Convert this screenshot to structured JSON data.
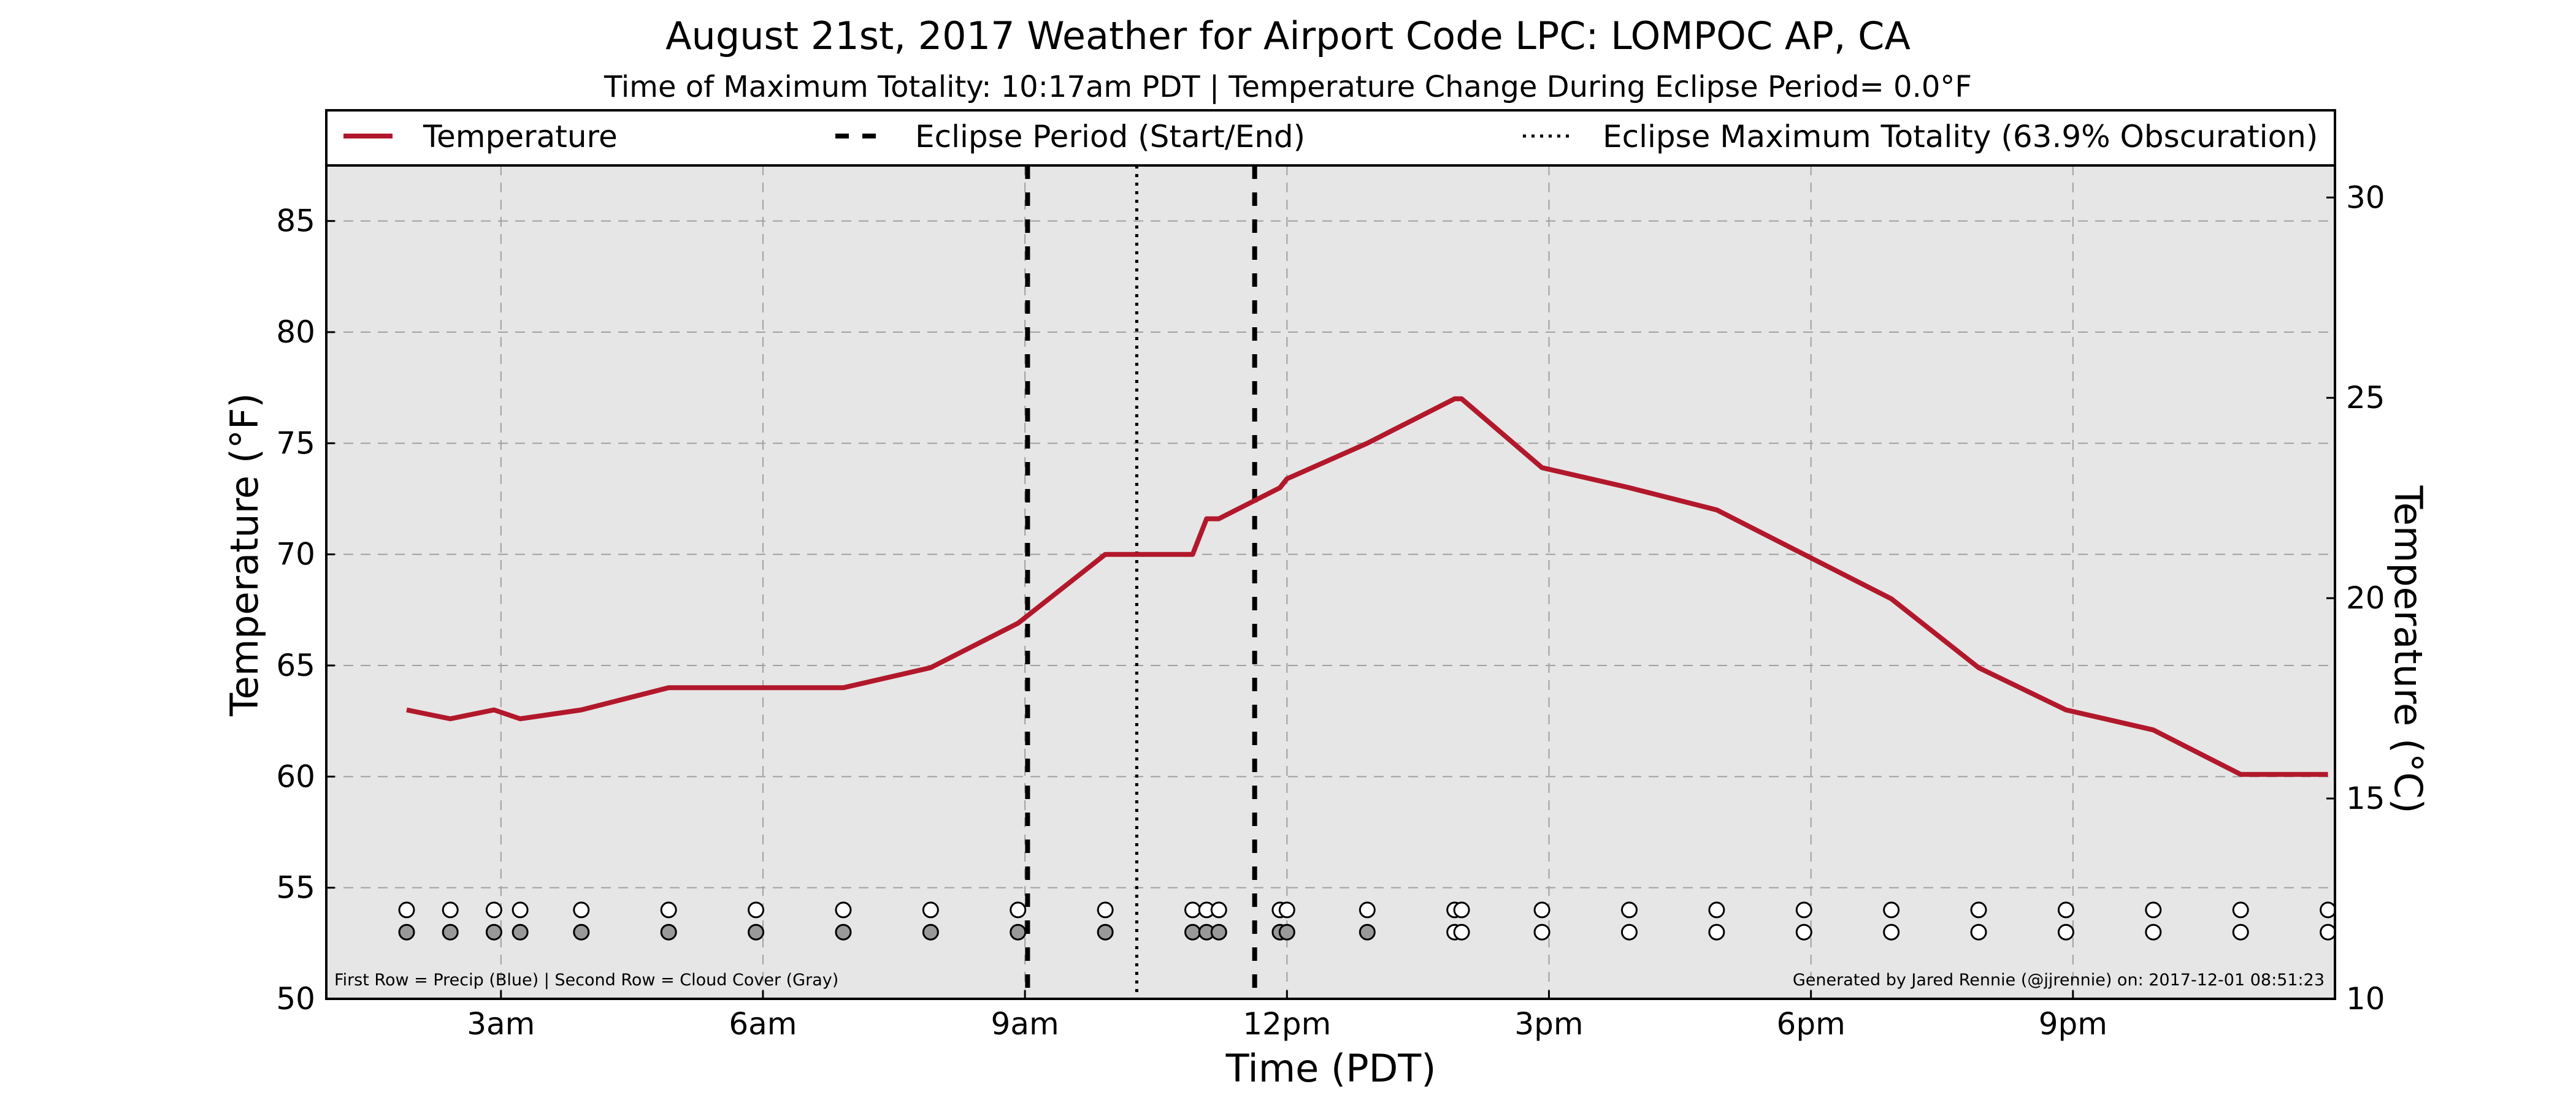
{
  "title": "August 21st, 2017 Weather for Airport Code LPC: LOMPOC AP, CA",
  "subtitle": "Time of Maximum Totality: 10:17am PDT | Temperature Change During Eclipse Period= 0.0°F",
  "legend": {
    "temperature": "Temperature",
    "eclipse_period": "Eclipse Period (Start/End)",
    "eclipse_max": "Eclipse Maximum Totality (63.9% Obscuration)"
  },
  "footer": {
    "left": "First Row = Precip (Blue) | Second Row = Cloud Cover (Gray)",
    "right": "Generated by Jared Rennie (@jjrennie) on: 2017-12-01 08:51:23"
  },
  "colors": {
    "temperature_line": "#b2182b",
    "plot_background": "#e6e6e6",
    "grid": "#a0a0a0",
    "cloud_fill": "#999999",
    "clear_fill": "#ffffff"
  },
  "chart_data": {
    "type": "line",
    "x_unit": "hour of day (PDT)",
    "xlabel": "Time (PDT)",
    "ylabel": "Temperature (°F)",
    "ylabel_right": "Temperature (°C)",
    "xlim": [
      1.0,
      24.0
    ],
    "ylim": [
      50,
      87.5
    ],
    "ylim_right": [
      10,
      30.8
    ],
    "x_ticks": [
      3,
      6,
      9,
      12,
      15,
      18,
      21
    ],
    "x_tick_labels": [
      "3am",
      "6am",
      "9am",
      "12pm",
      "3pm",
      "6pm",
      "9pm"
    ],
    "y_ticks": [
      50,
      55,
      60,
      65,
      70,
      75,
      80,
      85
    ],
    "y_ticks_right": [
      10,
      15,
      20,
      25,
      30
    ],
    "grid": true,
    "legend_position": "top",
    "series": [
      {
        "name": "Temperature",
        "x": [
          1.92,
          2.42,
          2.92,
          3.22,
          3.92,
          4.92,
          5.92,
          6.92,
          7.92,
          8.92,
          9.92,
          10.62,
          10.92,
          11.08,
          11.22,
          11.92,
          12.0,
          12.92,
          13.92,
          14.0,
          14.92,
          15.92,
          16.92,
          17.92,
          18.92,
          19.92,
          20.92,
          21.92,
          22.92,
          23.92
        ],
        "y": [
          63.0,
          62.6,
          63.0,
          62.6,
          63.0,
          64.0,
          64.0,
          64.0,
          64.9,
          66.9,
          70.0,
          70.0,
          70.0,
          71.6,
          71.6,
          73.0,
          73.4,
          75.0,
          77.0,
          77.0,
          73.9,
          73.0,
          72.0,
          70.0,
          68.0,
          64.9,
          63.0,
          62.1,
          60.1,
          60.1
        ]
      }
    ],
    "eclipse_start": 9.03,
    "eclipse_end": 11.63,
    "eclipse_max": 10.28,
    "observation_rows": {
      "precip_row_y": 54,
      "cloud_row_y": 53,
      "times": [
        1.92,
        2.42,
        2.92,
        3.22,
        3.92,
        4.92,
        5.92,
        6.92,
        7.92,
        8.92,
        9.92,
        10.92,
        11.08,
        11.22,
        11.92,
        12.0,
        12.92,
        13.92,
        14.0,
        14.92,
        15.92,
        16.92,
        17.92,
        18.92,
        19.92,
        20.92,
        21.92,
        22.92,
        23.92
      ],
      "cloudy": [
        true,
        true,
        true,
        true,
        true,
        true,
        true,
        true,
        true,
        true,
        true,
        true,
        true,
        true,
        true,
        true,
        true,
        false,
        false,
        false,
        false,
        false,
        false,
        false,
        false,
        false,
        false,
        false,
        false
      ]
    }
  }
}
